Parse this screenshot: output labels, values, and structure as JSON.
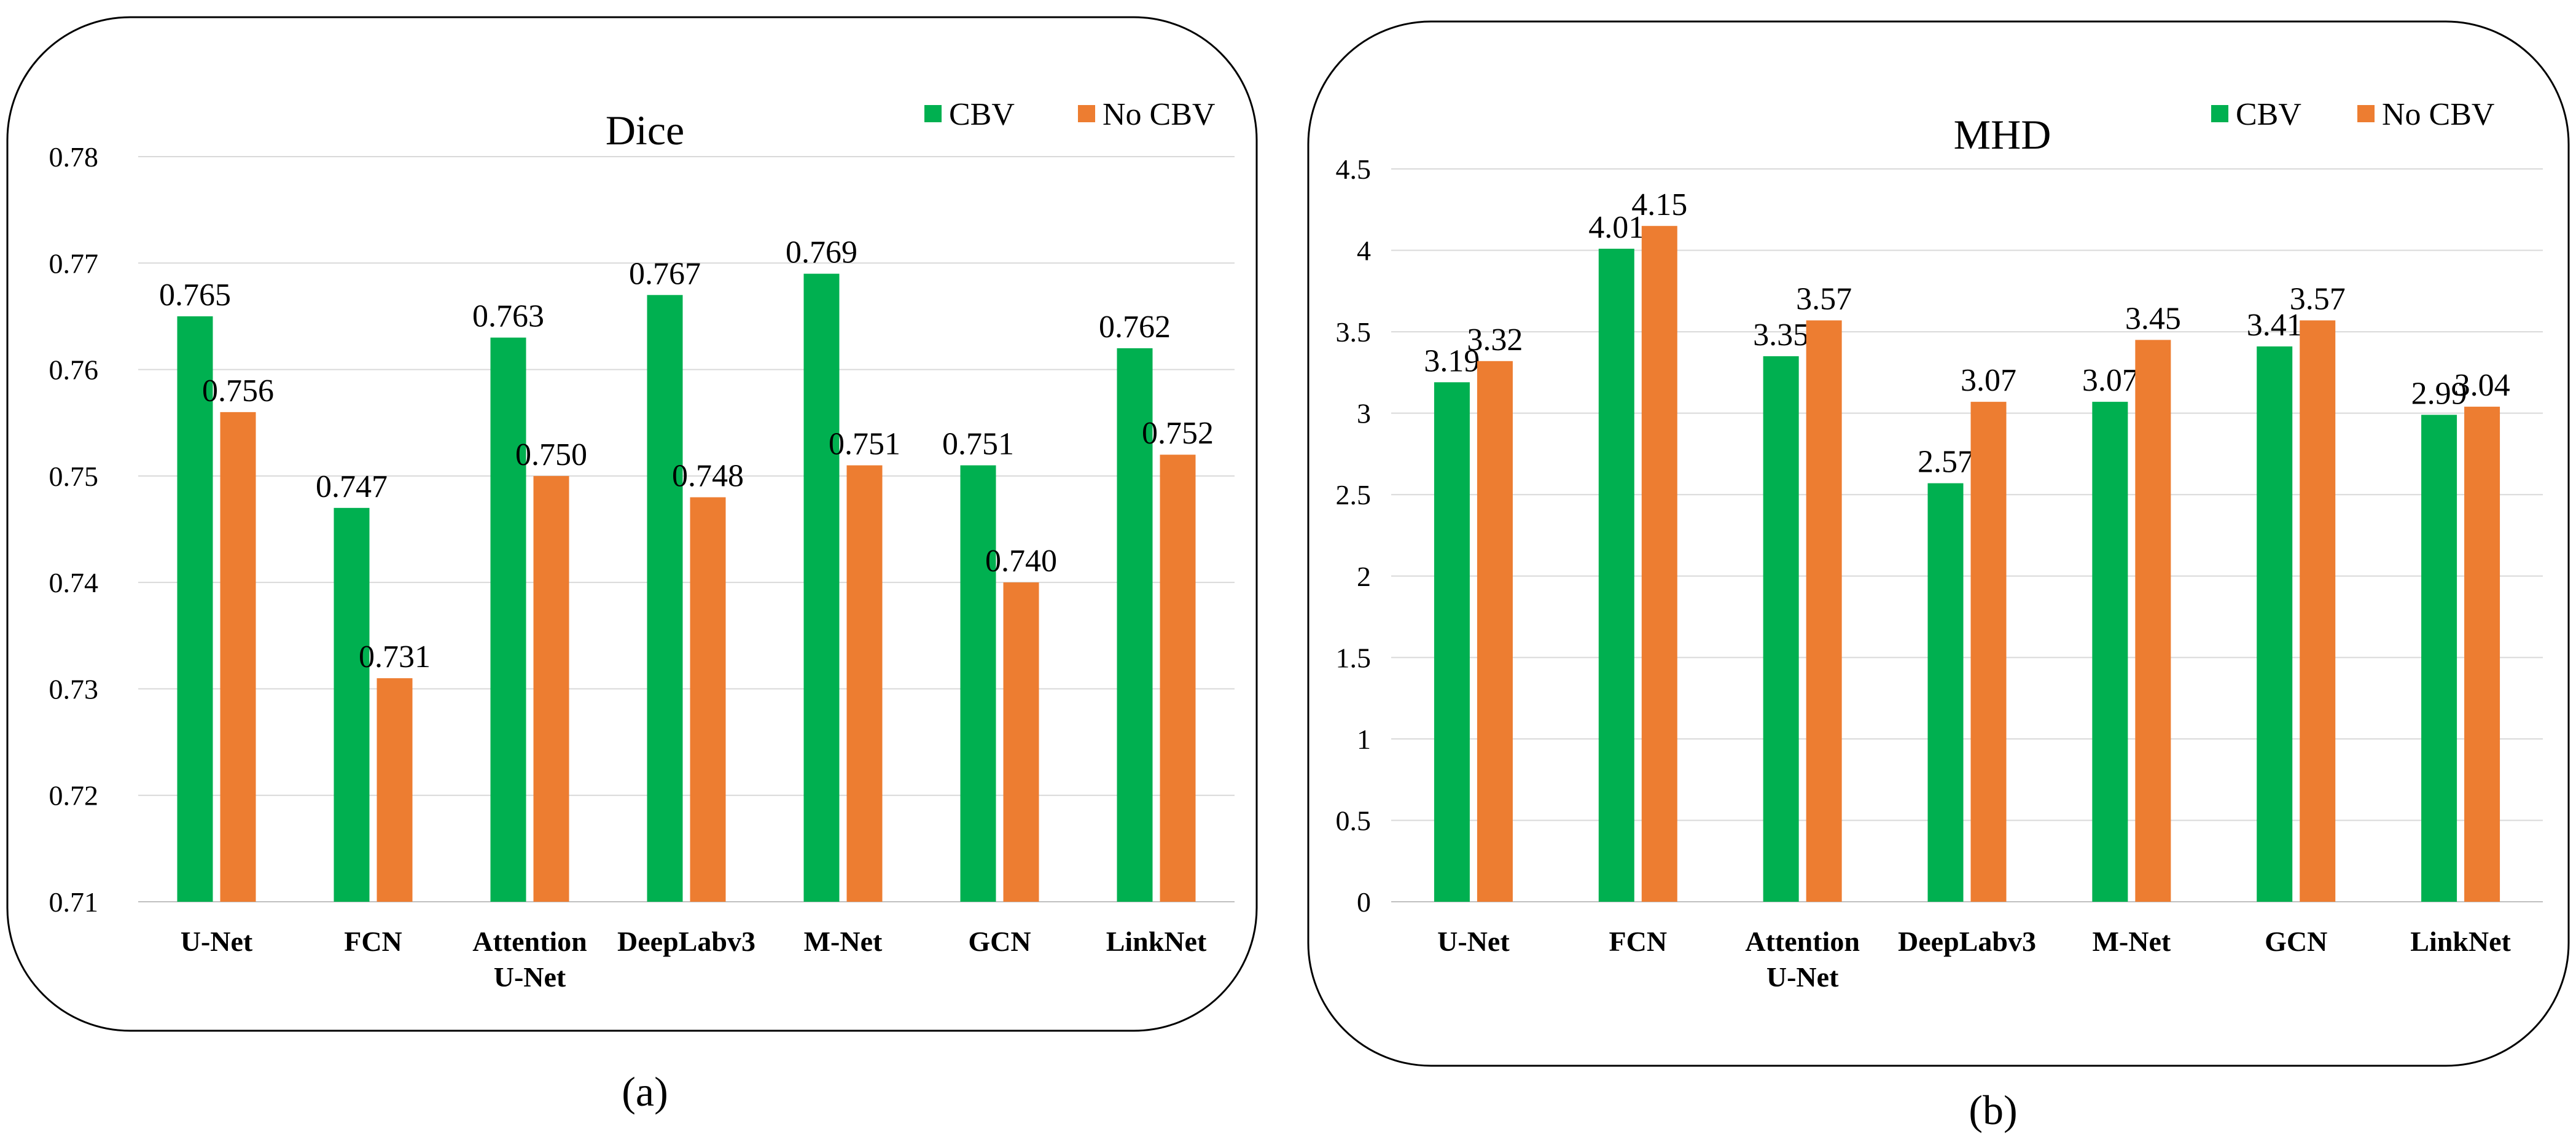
{
  "chart_data": [
    {
      "type": "bar",
      "title": "Dice",
      "caption": "(a)",
      "xlabel": "",
      "ylabel": "",
      "categories": [
        [
          "U-Net"
        ],
        [
          "FCN"
        ],
        [
          "Attention",
          "U-Net"
        ],
        [
          "DeepLabv3"
        ],
        [
          "M-Net"
        ],
        [
          "GCN"
        ],
        [
          "LinkNet"
        ]
      ],
      "ylim": [
        0.71,
        0.78
      ],
      "yticks": [
        "0.71",
        "0.72",
        "0.73",
        "0.74",
        "0.75",
        "0.76",
        "0.77",
        "0.78"
      ],
      "grid": true,
      "legend": "top-right",
      "series": [
        {
          "name": "CBV",
          "color": "#00b050",
          "values": [
            0.765,
            0.747,
            0.763,
            0.767,
            0.769,
            0.751,
            0.762
          ],
          "labels": [
            "0.765",
            "0.747",
            "0.763",
            "0.767",
            "0.769",
            "0.751",
            "0.762"
          ]
        },
        {
          "name": "No CBV",
          "color": "#ed7d31",
          "values": [
            0.756,
            0.731,
            0.75,
            0.748,
            0.751,
            0.74,
            0.752
          ],
          "labels": [
            "0.756",
            "0.731",
            "0.750",
            "0.748",
            "0.751",
            "0.740",
            "0.752"
          ]
        }
      ]
    },
    {
      "type": "bar",
      "title": "MHD",
      "caption": "(b)",
      "xlabel": "",
      "ylabel": "",
      "categories": [
        [
          "U-Net"
        ],
        [
          "FCN"
        ],
        [
          "Attention",
          "U-Net"
        ],
        [
          "DeepLabv3"
        ],
        [
          "M-Net"
        ],
        [
          "GCN"
        ],
        [
          "LinkNet"
        ]
      ],
      "ylim": [
        0,
        4.5
      ],
      "yticks": [
        "0",
        "0.5",
        "1",
        "1.5",
        "2",
        "2.5",
        "3",
        "3.5",
        "4",
        "4.5"
      ],
      "grid": true,
      "legend": "top-right",
      "series": [
        {
          "name": "CBV",
          "color": "#00b050",
          "values": [
            3.19,
            4.01,
            3.35,
            2.57,
            3.07,
            3.41,
            2.99
          ],
          "labels": [
            "3.19",
            "4.01",
            "3.35",
            "2.57",
            "3.07",
            "3.41",
            "2.99"
          ]
        },
        {
          "name": "No CBV",
          "color": "#ed7d31",
          "values": [
            3.32,
            4.15,
            3.57,
            3.07,
            3.45,
            3.57,
            3.04
          ],
          "labels": [
            "3.32",
            "4.15",
            "3.57",
            "3.07",
            "3.45",
            "3.57",
            "3.04"
          ]
        }
      ]
    }
  ]
}
